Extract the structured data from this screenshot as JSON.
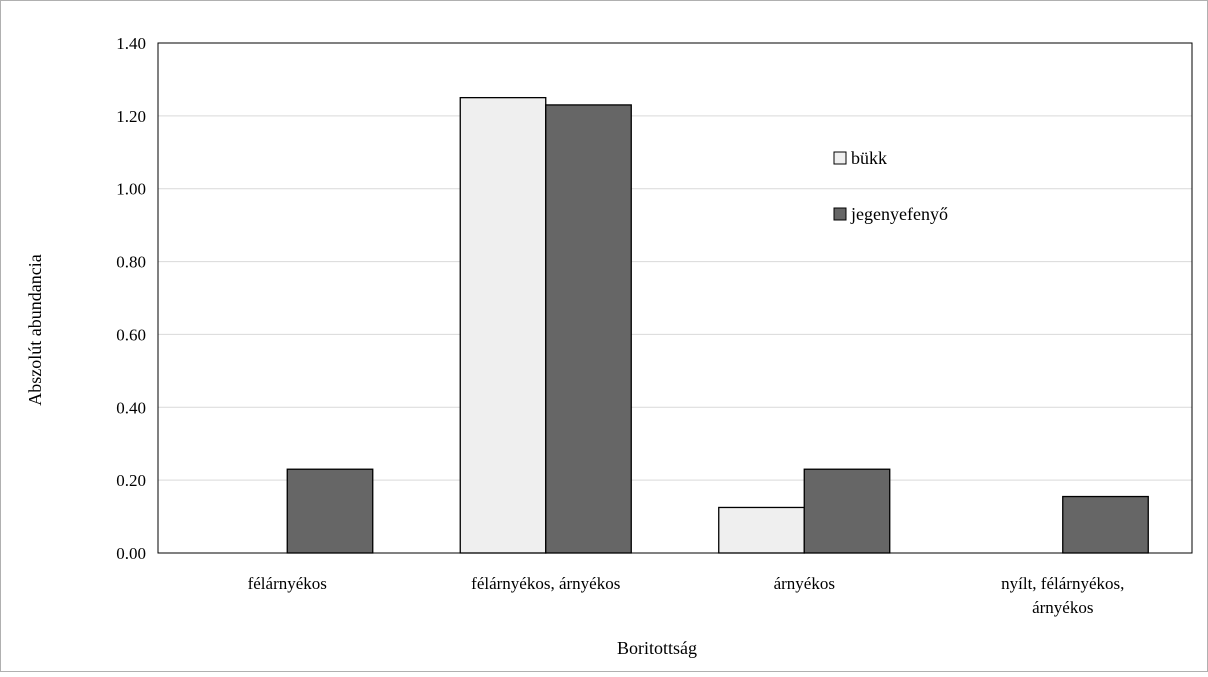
{
  "chart_data": {
    "type": "bar",
    "title": "",
    "xlabel": "Boritottság",
    "ylabel": "Abszolút abundancia",
    "ylim": [
      0,
      1.4
    ],
    "yticks": [
      "0.00",
      "0.20",
      "0.40",
      "0.60",
      "0.80",
      "1.00",
      "1.20",
      "1.40"
    ],
    "categories": [
      [
        "félárnyékos"
      ],
      [
        "félárnyékos, árnyékos"
      ],
      [
        "árnyékos"
      ],
      [
        "nyílt, félárnyékos,",
        "árnyékos"
      ]
    ],
    "series": [
      {
        "name": "bükk",
        "color": "#efefef",
        "values": [
          0,
          1.25,
          0.125,
          0
        ]
      },
      {
        "name": "jegenyefenyő",
        "color": "#666666",
        "values": [
          0.23,
          1.23,
          0.23,
          0.155
        ]
      }
    ],
    "grid": true,
    "legend_position": "top-right"
  }
}
